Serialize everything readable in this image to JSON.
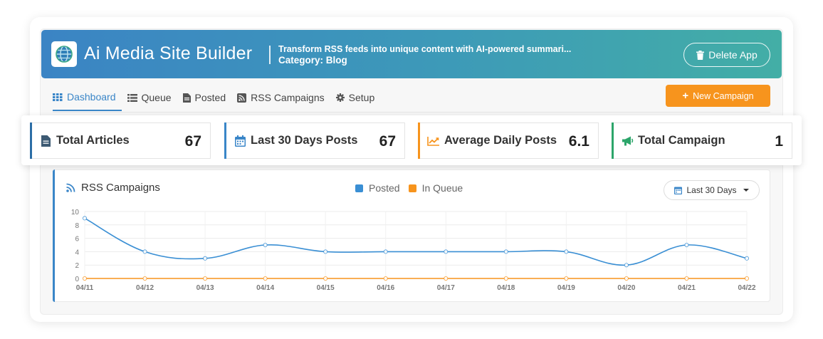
{
  "app": {
    "title": "Ai Media Site Builder",
    "description": "Transform RSS feeds into unique content with AI-powered summari...",
    "category": "Category: Blog",
    "delete_label": "Delete App"
  },
  "tabs": [
    {
      "label": "Dashboard",
      "icon": "grid-icon",
      "active": true
    },
    {
      "label": "Queue",
      "icon": "list-icon",
      "active": false
    },
    {
      "label": "Posted",
      "icon": "document-icon",
      "active": false
    },
    {
      "label": "RSS Campaigns",
      "icon": "rss-icon",
      "active": false
    },
    {
      "label": "Setup",
      "icon": "gear-icon",
      "active": false
    }
  ],
  "new_campaign_label": "New Campaign",
  "stats": [
    {
      "label": "Total Articles",
      "value": "67",
      "icon": "document-icon",
      "color": "#2c6ea6"
    },
    {
      "label": "Last 30 Days Posts",
      "value": "67",
      "icon": "calendar-icon",
      "color": "#3a86c8"
    },
    {
      "label": "Average Daily Posts",
      "value": "6.1",
      "icon": "trend-icon",
      "color": "#f7941d"
    },
    {
      "label": "Total Campaign",
      "value": "1",
      "icon": "megaphone-icon",
      "color": "#2ca56a"
    }
  ],
  "chart": {
    "title": "RSS Campaigns",
    "range_label": "Last 30 Days",
    "colors": {
      "posted": "#3a8fd4",
      "queue": "#f7941d"
    }
  },
  "chart_data": {
    "type": "line",
    "x": [
      "04/11",
      "04/12",
      "04/13",
      "04/14",
      "04/15",
      "04/16",
      "04/17",
      "04/18",
      "04/19",
      "04/20",
      "04/21",
      "04/22"
    ],
    "series": [
      {
        "name": "Posted",
        "values": [
          9,
          4,
          3,
          5,
          4,
          4,
          4,
          4,
          4,
          2,
          5,
          3
        ]
      },
      {
        "name": "In Queue",
        "values": [
          0,
          0,
          0,
          0,
          0,
          0,
          0,
          0,
          0,
          0,
          0,
          0
        ]
      }
    ],
    "yticks": [
      "0",
      "2",
      "4",
      "6",
      "8",
      "10"
    ],
    "ylim": [
      0,
      10
    ],
    "grid": true,
    "legend": "top-center"
  }
}
